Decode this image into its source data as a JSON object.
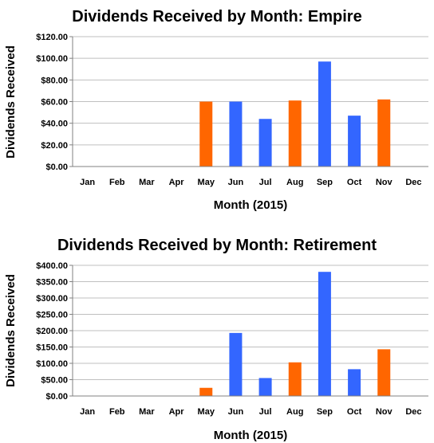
{
  "colors": {
    "blue": "#3366ff",
    "orange": "#ff6600"
  },
  "chart_data": [
    {
      "type": "bar",
      "title": "Dividends Received by Month: Empire",
      "xlabel": "Month (2015)",
      "ylabel": "Dividends Received",
      "categories": [
        "Jan",
        "Feb",
        "Mar",
        "Apr",
        "May",
        "Jun",
        "Jul",
        "Aug",
        "Sep",
        "Oct",
        "Nov",
        "Dec"
      ],
      "values": [
        0,
        0,
        0,
        0,
        60,
        60,
        44,
        61,
        97,
        47,
        62,
        0
      ],
      "bar_colors": [
        "#ff6600",
        "#ff6600",
        "#ff6600",
        "#ff6600",
        "#ff6600",
        "#3366ff",
        "#3366ff",
        "#ff6600",
        "#3366ff",
        "#3366ff",
        "#ff6600",
        "#ff6600"
      ],
      "ylim": [
        0,
        120
      ],
      "yticks": [
        0,
        20,
        40,
        60,
        80,
        100,
        120
      ],
      "ytick_labels": [
        "$0.00",
        "$20.00",
        "$40.00",
        "$60.00",
        "$80.00",
        "$100.00",
        "$120.00"
      ],
      "grid": true,
      "legend": "none"
    },
    {
      "type": "bar",
      "title": "Dividends Received by Month: Retirement",
      "xlabel": "Month (2015)",
      "ylabel": "Dividends Received",
      "categories": [
        "Jan",
        "Feb",
        "Mar",
        "Apr",
        "May",
        "Jun",
        "Jul",
        "Aug",
        "Sep",
        "Oct",
        "Nov",
        "Dec"
      ],
      "values": [
        0,
        0,
        0,
        0,
        25,
        193,
        55,
        103,
        380,
        82,
        143,
        0
      ],
      "bar_colors": [
        "#ff6600",
        "#ff6600",
        "#ff6600",
        "#ff6600",
        "#ff6600",
        "#3366ff",
        "#3366ff",
        "#ff6600",
        "#3366ff",
        "#3366ff",
        "#ff6600",
        "#ff6600"
      ],
      "ylim": [
        0,
        400
      ],
      "yticks": [
        0,
        50,
        100,
        150,
        200,
        250,
        300,
        350,
        400
      ],
      "ytick_labels": [
        "$0.00",
        "$50.00",
        "$100.00",
        "$150.00",
        "$200.00",
        "$250.00",
        "$300.00",
        "$350.00",
        "$400.00"
      ],
      "grid": true,
      "legend": "none"
    }
  ]
}
